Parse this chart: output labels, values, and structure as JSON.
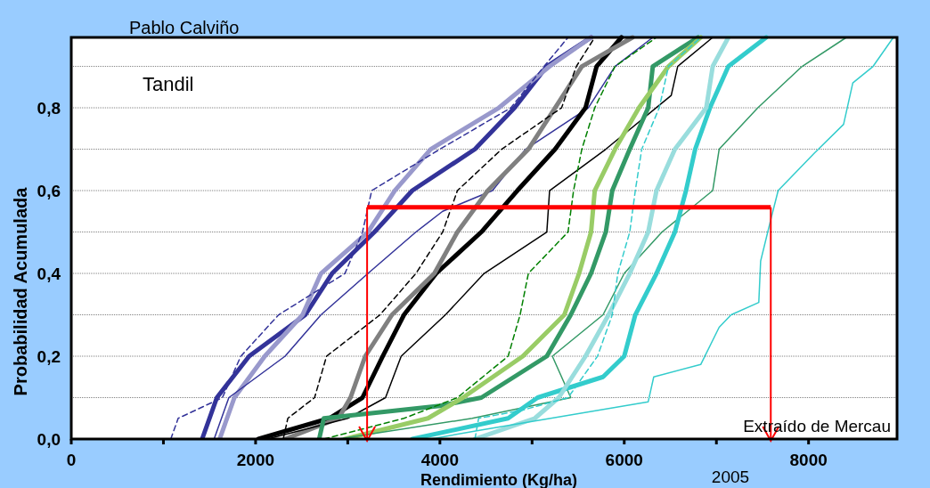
{
  "chart_data": {
    "type": "line",
    "xlabel": "Rendimiento (Kg/ha)",
    "ylabel": "Probabilidad Acumulada",
    "annotations": [
      "Pablo Calviño",
      "Tandil",
      "Extraído de Mercau",
      "2005"
    ],
    "xlim": [
      0,
      8960
    ],
    "ylim": [
      0,
      0.97
    ],
    "xticks": [
      0,
      {
        "value": 1000,
        "label": null
      },
      2000,
      {
        "value": 3000,
        "label": null
      },
      4000,
      {
        "value": 5000,
        "label": null
      },
      6000,
      {
        "value": 7000,
        "label": null
      },
      8000
    ],
    "yticks": [
      {
        "value": 0,
        "label": "0,0"
      },
      {
        "value": 0.1,
        "label": null
      },
      {
        "value": 0.2,
        "label": "0,2"
      },
      {
        "value": 0.3,
        "label": null
      },
      {
        "value": 0.4,
        "label": "0,4"
      },
      {
        "value": 0.5,
        "label": null
      },
      {
        "value": 0.6,
        "label": "0,6"
      },
      {
        "value": 0.7,
        "label": null
      },
      {
        "value": 0.8,
        "label": "0,8"
      },
      {
        "value": 0.9,
        "label": null
      }
    ],
    "grid": "y",
    "ref_lines": [
      {
        "axis": "y",
        "value": 0.56,
        "color": "#ff0000"
      },
      {
        "axis": "x",
        "value": 3210,
        "color": "#ff0000"
      },
      {
        "axis": "x",
        "value": 7590,
        "color": "#ff0000"
      }
    ],
    "series": [
      {
        "color": "#333399",
        "x": [
          1420,
          1580,
          1930,
          2540,
          2830,
          3290,
          3700,
          4380,
          4810,
          5160,
          5640
        ],
        "values": [
          0,
          0.1,
          0.2,
          0.3,
          0.4,
          0.5,
          0.6,
          0.7,
          0.8,
          0.9,
          0.97
        ]
      },
      {
        "color": "#9999cc",
        "x": [
          1610,
          1770,
          2100,
          2510,
          2710,
          3220,
          3510,
          3900,
          4640,
          5190,
          5640
        ],
        "values": [
          0,
          0.1,
          0.2,
          0.3,
          0.4,
          0.5,
          0.6,
          0.7,
          0.8,
          0.9,
          0.97
        ]
      },
      {
        "color": "#333399",
        "line_style": "dashed",
        "x": [
          1080,
          1160,
          1640,
          1840,
          2250,
          2970,
          3160,
          3260,
          4000,
          4770,
          5130,
          5390
        ],
        "values": [
          0,
          0.05,
          0.1,
          0.2,
          0.3,
          0.4,
          0.5,
          0.6,
          0.7,
          0.8,
          0.9,
          0.97
        ]
      },
      {
        "color": "#333399",
        "x": [
          1550,
          1710,
          2320,
          2710,
          3220,
          3740,
          4030,
          4570,
          4930,
          5610,
          5900,
          6310
        ],
        "values": [
          0,
          0.1,
          0.2,
          0.3,
          0.4,
          0.5,
          0.55,
          0.6,
          0.7,
          0.8,
          0.9,
          0.97
        ]
      },
      {
        "color": "#000000",
        "x": [
          2030,
          2800,
          3160,
          3380,
          3610,
          3960,
          4450,
          4840,
          5250,
          5580,
          5700,
          5970
        ],
        "values": [
          0,
          0.05,
          0.1,
          0.2,
          0.3,
          0.4,
          0.5,
          0.6,
          0.7,
          0.8,
          0.9,
          0.97
        ]
      },
      {
        "color": "#808080",
        "x": [
          2320,
          2900,
          3030,
          3190,
          3480,
          3940,
          4190,
          4520,
          4960,
          5250,
          5540,
          6090
        ],
        "values": [
          0,
          0.05,
          0.1,
          0.2,
          0.3,
          0.4,
          0.5,
          0.6,
          0.7,
          0.8,
          0.9,
          0.97
        ]
      },
      {
        "color": "#000000",
        "line_style": "dashed",
        "x": [
          2300,
          2350,
          2640,
          2770,
          3350,
          3740,
          4030,
          4190,
          4670,
          5320,
          5480,
          5680
        ],
        "values": [
          0,
          0.05,
          0.1,
          0.2,
          0.3,
          0.4,
          0.5,
          0.6,
          0.7,
          0.8,
          0.9,
          0.97
        ]
      },
      {
        "color": "#000000",
        "x": [
          2130,
          3000,
          3410,
          3580,
          4060,
          4480,
          5160,
          5190,
          5800,
          6510,
          6580,
          6960
        ],
        "values": [
          0,
          0.05,
          0.1,
          0.2,
          0.3,
          0.4,
          0.5,
          0.6,
          0.7,
          0.83,
          0.9,
          0.97
        ]
      },
      {
        "color": "#339966",
        "x": [
          2690,
          2740,
          4000,
          4450,
          5160,
          5420,
          5640,
          5800,
          5870,
          6060,
          6260,
          6310,
          6800
        ],
        "values": [
          0,
          0.05,
          0.08,
          0.1,
          0.2,
          0.3,
          0.4,
          0.5,
          0.6,
          0.7,
          0.8,
          0.9,
          0.97
        ]
      },
      {
        "color": "#99cc66",
        "x": [
          2970,
          3870,
          4250,
          4900,
          5350,
          5510,
          5640,
          5680,
          5900,
          6160,
          6480,
          6830
        ],
        "values": [
          0,
          0.05,
          0.1,
          0.2,
          0.3,
          0.4,
          0.5,
          0.6,
          0.7,
          0.8,
          0.9,
          0.97
        ]
      },
      {
        "color": "#008000",
        "line_style": "dashed",
        "x": [
          2740,
          3610,
          4190,
          4740,
          4870,
          4960,
          5390,
          5450,
          5540,
          5680,
          5900,
          6350
        ],
        "values": [
          0,
          0.05,
          0.1,
          0.2,
          0.3,
          0.4,
          0.5,
          0.6,
          0.7,
          0.8,
          0.9,
          0.97
        ]
      },
      {
        "color": "#339966",
        "x": [
          2900,
          4350,
          5420,
          5220,
          5770,
          6000,
          6410,
          6960,
          7030,
          7450,
          7930,
          8410
        ],
        "values": [
          0,
          0.05,
          0.1,
          0.2,
          0.3,
          0.4,
          0.5,
          0.6,
          0.7,
          0.8,
          0.9,
          0.97
        ]
      },
      {
        "color": "#33cccc",
        "x": [
          3700,
          4740,
          5060,
          5770,
          6000,
          6120,
          6350,
          6550,
          6670,
          6770,
          6930,
          7130,
          7540
        ],
        "values": [
          0,
          0.05,
          0.1,
          0.15,
          0.2,
          0.3,
          0.4,
          0.5,
          0.6,
          0.7,
          0.8,
          0.9,
          0.97
        ]
      },
      {
        "color": "#99dddd",
        "x": [
          4380,
          5030,
          5290,
          5580,
          5830,
          6060,
          6260,
          6350,
          6550,
          6890,
          6960,
          7130
        ],
        "values": [
          0,
          0.05,
          0.1,
          0.2,
          0.3,
          0.4,
          0.5,
          0.6,
          0.7,
          0.8,
          0.9,
          0.97
        ]
      },
      {
        "color": "#33cccc",
        "line_style": "dashed",
        "x": [
          4380,
          4420,
          4900,
          5390,
          5710,
          5870,
          5930,
          6060,
          6120,
          6190,
          6380,
          6480,
          6830
        ],
        "values": [
          0,
          0.05,
          0.07,
          0.1,
          0.2,
          0.3,
          0.4,
          0.5,
          0.6,
          0.7,
          0.8,
          0.9,
          0.97
        ]
      },
      {
        "color": "#33cccc",
        "x": [
          3900,
          4400,
          6260,
          6320,
          6830,
          7030,
          7160,
          7460,
          7480,
          7590,
          7670,
          8060,
          8380,
          8480,
          8700,
          8920
        ],
        "values": [
          0,
          0.02,
          0.09,
          0.15,
          0.18,
          0.27,
          0.3,
          0.33,
          0.43,
          0.53,
          0.6,
          0.69,
          0.76,
          0.86,
          0.9,
          0.97
        ]
      }
    ]
  }
}
